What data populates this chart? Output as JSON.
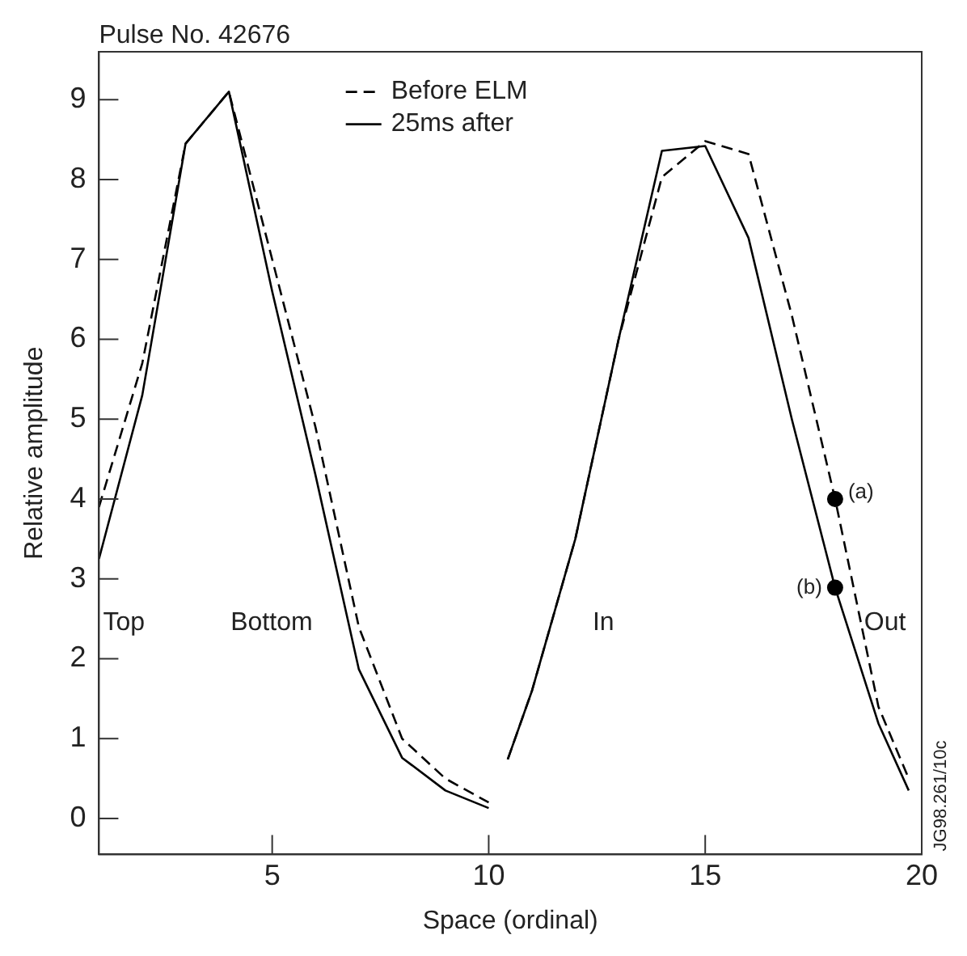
{
  "chart_data": {
    "type": "line",
    "title": "Pulse No. 42676",
    "xlabel": "Space (ordinal)",
    "ylabel": "Relative amplitude",
    "xlim": [
      1,
      20
    ],
    "xticks": [
      5,
      10,
      15,
      20
    ],
    "ylim": [
      -0.45,
      9.6
    ],
    "yticks": [
      0,
      1,
      2,
      3,
      4,
      5,
      6,
      7,
      8,
      9
    ],
    "grid": false,
    "legend": "top",
    "marker": "none",
    "series": [
      {
        "name": "Before ELM",
        "color": "#000000",
        "line_style": "dashed",
        "x": [
          1,
          2,
          3,
          4,
          5,
          6,
          7,
          8,
          9,
          10,
          null,
          10.44,
          11,
          12,
          13,
          14,
          15,
          16,
          17,
          18,
          19,
          19.7
        ],
        "values": [
          3.9,
          5.7,
          8.45,
          9.1,
          7.0,
          4.9,
          2.4,
          1.0,
          0.5,
          0.2,
          null,
          0.74,
          1.6,
          3.5,
          6.0,
          8.03,
          8.48,
          8.32,
          6.3,
          4.0,
          1.4,
          0.5
        ]
      },
      {
        "name": "25ms after",
        "color": "#000000",
        "line_style": "solid",
        "x": [
          1,
          2,
          3,
          4,
          5,
          6,
          7,
          8,
          9,
          10,
          null,
          10.44,
          11,
          12,
          13,
          14,
          15,
          16,
          17,
          18,
          19,
          19.7
        ],
        "values": [
          3.25,
          5.3,
          8.45,
          9.1,
          6.6,
          4.3,
          1.87,
          0.76,
          0.35,
          0.13,
          null,
          0.74,
          1.6,
          3.5,
          6.0,
          8.36,
          8.42,
          7.27,
          5.0,
          2.89,
          1.19,
          0.35
        ]
      },
      {
        "type": "scatter",
        "color": "#000000",
        "marker": "circle",
        "x": [
          18,
          18
        ],
        "values": [
          4.0,
          2.89
        ]
      }
    ],
    "annotations": [
      "Top",
      "Bottom",
      "In",
      "Out",
      {
        "text": "(a)",
        "x": 18,
        "y": 4.0
      },
      {
        "text": "(b)",
        "x": 18,
        "y": 2.89
      },
      "JG98.261/10c"
    ]
  }
}
